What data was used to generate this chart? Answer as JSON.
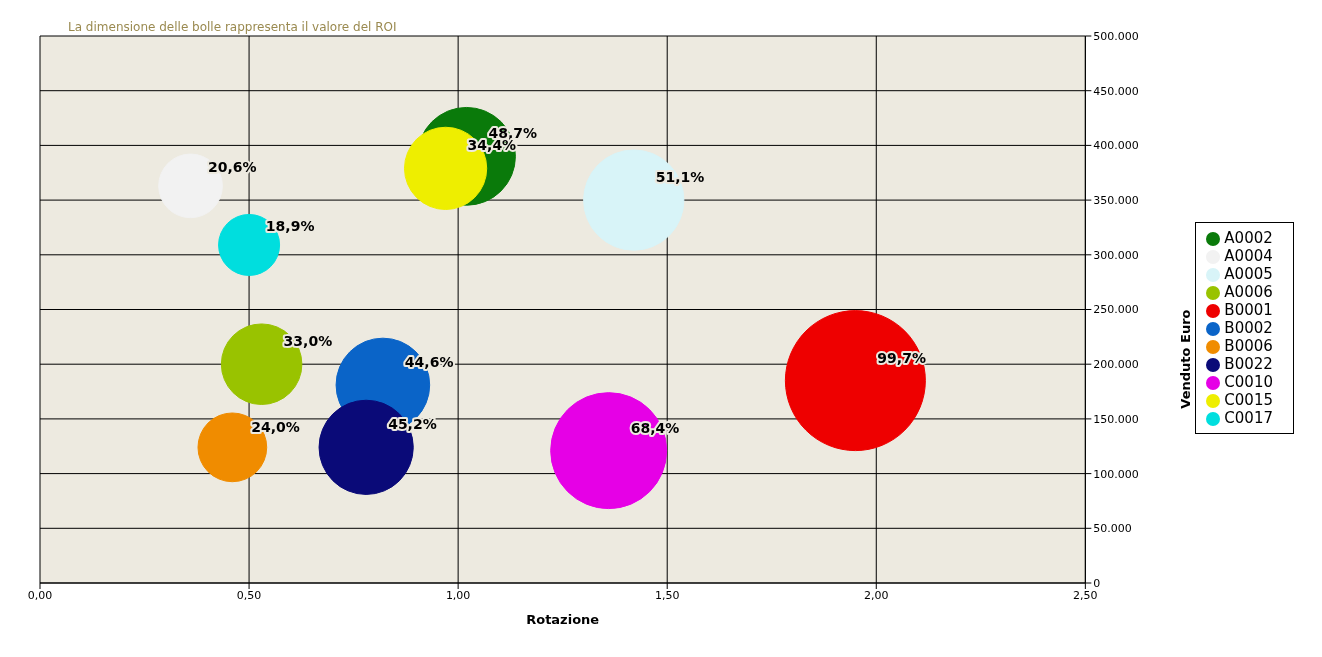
{
  "chart_data": {
    "type": "bubble",
    "xlabel": "Rotazione",
    "ylabel": "Venduto Euro",
    "annotations": [
      "La dimensione delle bolle rappresenta il valore del ROI",
      {
        "text": "48,7%",
        "x": 1.02,
        "y": 390000
      },
      {
        "text": "20,6%",
        "x": 0.36,
        "y": 363000
      },
      {
        "text": "51,1%",
        "x": 1.42,
        "y": 350000
      },
      {
        "text": "33,0%",
        "x": 0.53,
        "y": 200000
      },
      {
        "text": "99,7%",
        "x": 1.95,
        "y": 185000
      },
      {
        "text": "44,6%",
        "x": 0.82,
        "y": 181000
      },
      {
        "text": "24,0%",
        "x": 0.46,
        "y": 124000
      },
      {
        "text": "45,2%",
        "x": 0.78,
        "y": 124000
      },
      {
        "text": "68,4%",
        "x": 1.36,
        "y": 121000
      },
      {
        "text": "34,4%",
        "x": 0.97,
        "y": 379000
      },
      {
        "text": "18,9%",
        "x": 0.5,
        "y": 309000
      }
    ],
    "xlim": [
      0,
      2.5
    ],
    "xticks": [
      {
        "value": 0,
        "label": "0,00"
      },
      {
        "value": 0.5,
        "label": "0,50"
      },
      {
        "value": 1,
        "label": "1,00"
      },
      {
        "value": 1.5,
        "label": "1,50"
      },
      {
        "value": 2,
        "label": "2,00"
      },
      {
        "value": 2.5,
        "label": "2,50"
      }
    ],
    "ylim": [
      0,
      500000
    ],
    "yticks": [
      {
        "value": 0,
        "label": "0"
      },
      {
        "value": 50000,
        "label": "50.000"
      },
      {
        "value": 100000,
        "label": "100.000"
      },
      {
        "value": 150000,
        "label": "150.000"
      },
      {
        "value": 200000,
        "label": "200.000"
      },
      {
        "value": 250000,
        "label": "250.000"
      },
      {
        "value": 300000,
        "label": "300.000"
      },
      {
        "value": 350000,
        "label": "350.000"
      },
      {
        "value": 400000,
        "label": "400.000"
      },
      {
        "value": 450000,
        "label": "450.000"
      },
      {
        "value": 500000,
        "label": "500.000"
      }
    ],
    "grid": true,
    "legend": "right",
    "marker": "circle",
    "series": [
      {
        "name": "A0002",
        "color": "#0a7a0a",
        "x": [
          1.02
        ],
        "values": [
          390000
        ],
        "sizes": [
          0.488
        ]
      },
      {
        "name": "A0004",
        "color": "#f2f2f2",
        "x": [
          0.36
        ],
        "values": [
          363000
        ],
        "sizes": [
          0.207
        ]
      },
      {
        "name": "A0005",
        "color": "#d8f4f8",
        "x": [
          1.42
        ],
        "values": [
          350000
        ],
        "sizes": [
          0.513
        ]
      },
      {
        "name": "A0006",
        "color": "#99c300",
        "x": [
          0.53
        ],
        "values": [
          200000
        ],
        "sizes": [
          0.331
        ]
      },
      {
        "name": "B0001",
        "color": "#ee0000",
        "x": [
          1.95
        ],
        "values": [
          185000
        ],
        "sizes": [
          1
        ]
      },
      {
        "name": "B0002",
        "color": "#0a64c8",
        "x": [
          0.82
        ],
        "values": [
          181000
        ],
        "sizes": [
          0.447
        ]
      },
      {
        "name": "B0006",
        "color": "#f08c00",
        "x": [
          0.46
        ],
        "values": [
          124000
        ],
        "sizes": [
          0.241
        ]
      },
      {
        "name": "B0022",
        "color": "#0a0a78",
        "x": [
          0.78
        ],
        "values": [
          124000
        ],
        "sizes": [
          0.453
        ]
      },
      {
        "name": "C0010",
        "color": "#e600e6",
        "x": [
          1.36
        ],
        "values": [
          121000
        ],
        "sizes": [
          0.686
        ]
      },
      {
        "name": "C0015",
        "color": "#eeee00",
        "x": [
          0.97
        ],
        "values": [
          379000
        ],
        "sizes": [
          0.345
        ]
      },
      {
        "name": "C0017",
        "color": "#00dede",
        "x": [
          0.5
        ],
        "values": [
          309000
        ],
        "sizes": [
          0.19
        ]
      }
    ]
  }
}
